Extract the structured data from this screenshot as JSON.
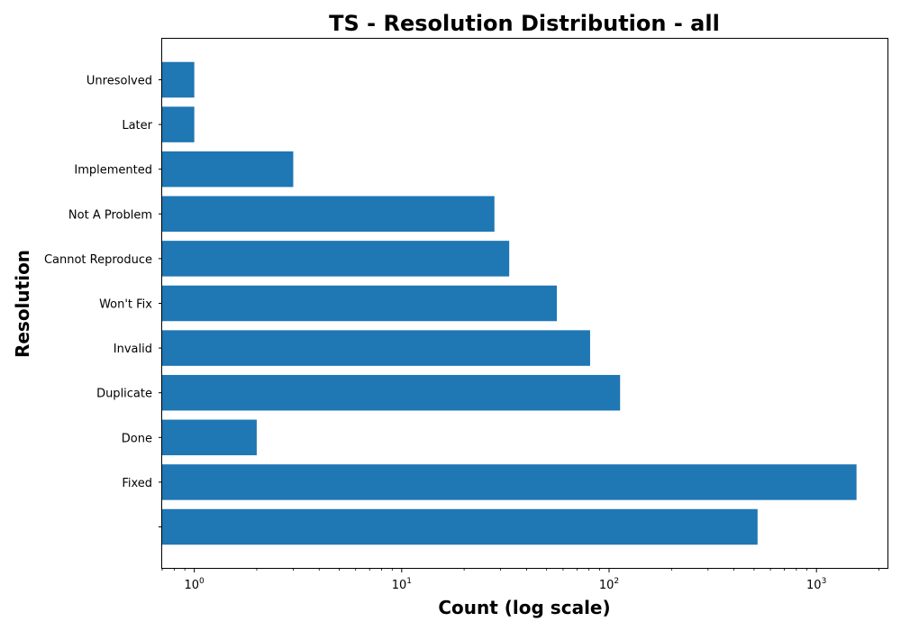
{
  "chart_data": {
    "type": "bar",
    "orientation": "horizontal",
    "title": "TS - Resolution Distribution - all",
    "xlabel": "Count (log scale)",
    "ylabel": "Resolution",
    "xscale": "log",
    "xlim": [
      0.7,
      2200
    ],
    "x_ticks": [
      {
        "base": "10",
        "exp": "0",
        "value": 1
      },
      {
        "base": "10",
        "exp": "1",
        "value": 10
      },
      {
        "base": "10",
        "exp": "2",
        "value": 100
      },
      {
        "base": "10",
        "exp": "3",
        "value": 1000
      }
    ],
    "categories": [
      "",
      "Fixed",
      "Done",
      "Duplicate",
      "Invalid",
      "Won't Fix",
      "Cannot Reproduce",
      "Not A Problem",
      "Implemented",
      "Later",
      "Unresolved"
    ],
    "values": [
      520,
      1560,
      2,
      113,
      81,
      56,
      33,
      28,
      3,
      1,
      1
    ],
    "bar_color": "#1f77b4",
    "grid": false,
    "legend": "none"
  }
}
